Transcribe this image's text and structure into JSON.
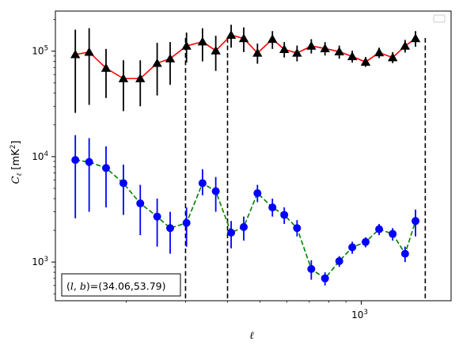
{
  "chart_data": {
    "type": "scatter",
    "xscale": "log",
    "yscale": "log",
    "xlim": [
      123,
      1850
    ],
    "ylim": [
      430,
      240000
    ],
    "xlabel": "ℓ",
    "ylabel": "C_ℓ [mK²]",
    "xticks": [
      {
        "value": 1000,
        "label": "10^3"
      }
    ],
    "yticks": [
      {
        "value": 1000,
        "label": "10^3"
      },
      {
        "value": 10000,
        "label": "10^4"
      },
      {
        "value": 100000,
        "label": "10^5"
      }
    ],
    "vlines": [
      300,
      400,
      1550
    ],
    "legend": "top-right",
    "annotation": "(l, b)=(34.06,53.79)",
    "series": [
      {
        "color": "#000000",
        "line_color": "#ff0000",
        "line_style": "solid",
        "marker": "triangle",
        "points": [
          {
            "x": 141,
            "y": 93000,
            "ylo": 26000,
            "yhi": 160000
          },
          {
            "x": 155,
            "y": 98000,
            "ylo": 31000,
            "yhi": 165000
          },
          {
            "x": 174,
            "y": 69000,
            "ylo": 36000,
            "yhi": 105000
          },
          {
            "x": 196,
            "y": 55000,
            "ylo": 27000,
            "yhi": 82000
          },
          {
            "x": 220,
            "y": 55000,
            "ylo": 30000,
            "yhi": 82000
          },
          {
            "x": 247,
            "y": 77000,
            "ylo": 38000,
            "yhi": 120000
          },
          {
            "x": 270,
            "y": 85000,
            "ylo": 48000,
            "yhi": 122000
          },
          {
            "x": 302,
            "y": 112000,
            "ylo": 78000,
            "yhi": 150000
          },
          {
            "x": 337,
            "y": 123000,
            "ylo": 80000,
            "yhi": 165000
          },
          {
            "x": 369,
            "y": 101000,
            "ylo": 65000,
            "yhi": 140000
          },
          {
            "x": 410,
            "y": 142000,
            "ylo": 108000,
            "yhi": 178000
          },
          {
            "x": 447,
            "y": 132000,
            "ylo": 98000,
            "yhi": 168000
          },
          {
            "x": 491,
            "y": 96000,
            "ylo": 76000,
            "yhi": 118000
          },
          {
            "x": 544,
            "y": 130000,
            "ylo": 105000,
            "yhi": 155000
          },
          {
            "x": 590,
            "y": 104000,
            "ylo": 87000,
            "yhi": 122000
          },
          {
            "x": 644,
            "y": 96000,
            "ylo": 80000,
            "yhi": 113000
          },
          {
            "x": 710,
            "y": 112000,
            "ylo": 95000,
            "yhi": 130000
          },
          {
            "x": 780,
            "y": 106000,
            "ylo": 91000,
            "yhi": 122000
          },
          {
            "x": 860,
            "y": 99000,
            "ylo": 85000,
            "yhi": 113000
          },
          {
            "x": 940,
            "y": 89000,
            "ylo": 78000,
            "yhi": 101000
          },
          {
            "x": 1030,
            "y": 79000,
            "ylo": 71000,
            "yhi": 88000
          },
          {
            "x": 1130,
            "y": 97000,
            "ylo": 86000,
            "yhi": 108000
          },
          {
            "x": 1240,
            "y": 87000,
            "ylo": 77000,
            "yhi": 98000
          },
          {
            "x": 1350,
            "y": 112000,
            "ylo": 97000,
            "yhi": 128000
          },
          {
            "x": 1450,
            "y": 132000,
            "ylo": 110000,
            "yhi": 155000
          }
        ]
      },
      {
        "color": "#0000ff",
        "line_color": "#008000",
        "line_style": "dashed",
        "marker": "circle",
        "points": [
          {
            "x": 141,
            "y": 9300,
            "ylo": 2600,
            "yhi": 16000
          },
          {
            "x": 155,
            "y": 8900,
            "ylo": 3000,
            "yhi": 15000
          },
          {
            "x": 174,
            "y": 7800,
            "ylo": 3300,
            "yhi": 12500
          },
          {
            "x": 196,
            "y": 5600,
            "ylo": 2800,
            "yhi": 8400
          },
          {
            "x": 220,
            "y": 3600,
            "ylo": 1800,
            "yhi": 5400
          },
          {
            "x": 247,
            "y": 2700,
            "ylo": 1400,
            "yhi": 4000
          },
          {
            "x": 270,
            "y": 2100,
            "ylo": 1200,
            "yhi": 3000
          },
          {
            "x": 302,
            "y": 2350,
            "ylo": 1400,
            "yhi": 3300
          },
          {
            "x": 337,
            "y": 5600,
            "ylo": 4300,
            "yhi": 7600
          },
          {
            "x": 369,
            "y": 4700,
            "ylo": 3000,
            "yhi": 6400
          },
          {
            "x": 410,
            "y": 1900,
            "ylo": 1350,
            "yhi": 2450
          },
          {
            "x": 447,
            "y": 2150,
            "ylo": 1600,
            "yhi": 2700
          },
          {
            "x": 491,
            "y": 4500,
            "ylo": 3700,
            "yhi": 5400
          },
          {
            "x": 544,
            "y": 3300,
            "ylo": 2700,
            "yhi": 4000
          },
          {
            "x": 590,
            "y": 2800,
            "ylo": 2300,
            "yhi": 3300
          },
          {
            "x": 644,
            "y": 2100,
            "ylo": 1750,
            "yhi": 2500
          },
          {
            "x": 710,
            "y": 860,
            "ylo": 680,
            "yhi": 1040
          },
          {
            "x": 780,
            "y": 700,
            "ylo": 600,
            "yhi": 800
          },
          {
            "x": 860,
            "y": 1020,
            "ylo": 900,
            "yhi": 1140
          },
          {
            "x": 940,
            "y": 1380,
            "ylo": 1200,
            "yhi": 1560
          },
          {
            "x": 1030,
            "y": 1550,
            "ylo": 1380,
            "yhi": 1720
          },
          {
            "x": 1130,
            "y": 2050,
            "ylo": 1800,
            "yhi": 2300
          },
          {
            "x": 1240,
            "y": 1850,
            "ylo": 1600,
            "yhi": 2100
          },
          {
            "x": 1350,
            "y": 1200,
            "ylo": 1000,
            "yhi": 1400
          },
          {
            "x": 1450,
            "y": 2450,
            "ylo": 1750,
            "yhi": 3150
          }
        ]
      }
    ]
  }
}
